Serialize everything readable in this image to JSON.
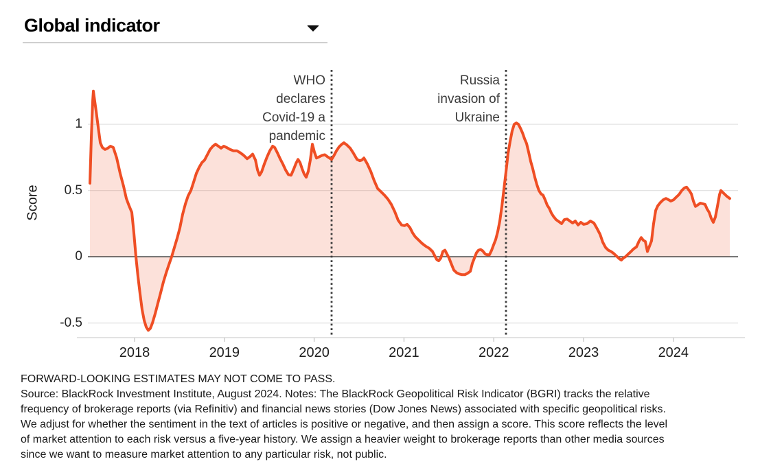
{
  "header": {
    "title": "Global indicator",
    "dropdown_icon": "caret-down"
  },
  "chart_data": {
    "type": "area",
    "title": "Global indicator",
    "xlabel": "",
    "ylabel": "Score",
    "x_ticks": [
      2018,
      2019,
      2020,
      2021,
      2022,
      2023,
      2024
    ],
    "x_tick_labels": [
      "2018",
      "2019",
      "2020",
      "2021",
      "2022",
      "2023",
      "2024"
    ],
    "y_ticks": [
      1,
      0.5,
      0,
      -0.5
    ],
    "y_tick_labels": [
      "1",
      "0.5",
      "0",
      "-0.5"
    ],
    "xlim": [
      2017.48,
      2024.72
    ],
    "ylim": [
      -0.61,
      1.42
    ],
    "grid": "horizontal",
    "legend": "none",
    "annotations": [
      {
        "text": "WHO\ndeclares\nCovid-19 a\npandemic",
        "x": 2020.194,
        "line_style": "dotted"
      },
      {
        "text": "Russia\ninvasion of\nUkraine",
        "x": 2022.136,
        "line_style": "dotted"
      }
    ],
    "colors": {
      "line": "#EF4E24",
      "fill": "#EF4E24",
      "fill_opacity": 0.17,
      "grid": "#E3E3E3",
      "zero_line": "#454545",
      "axis_bottom": "#D9D9D9",
      "tick": "#C9C9C9",
      "event_line": "#3E3E3E"
    },
    "series": [
      {
        "name": "Global indicator",
        "x": [
          2017.503,
          2017.518,
          2017.534,
          2017.541,
          2017.557,
          2017.572,
          2017.595,
          2017.618,
          2017.641,
          2017.671,
          2017.702,
          2017.732,
          2017.763,
          2017.801,
          2017.839,
          2017.878,
          2017.908,
          2017.939,
          2017.969,
          2017.992,
          2018.015,
          2018.038,
          2018.061,
          2018.084,
          2018.107,
          2018.13,
          2018.153,
          2018.176,
          2018.199,
          2018.229,
          2018.26,
          2018.291,
          2018.321,
          2018.352,
          2018.382,
          2018.413,
          2018.443,
          2018.474,
          2018.505,
          2018.535,
          2018.566,
          2018.596,
          2018.627,
          2018.658,
          2018.688,
          2018.719,
          2018.749,
          2018.78,
          2018.81,
          2018.841,
          2018.872,
          2018.902,
          2018.933,
          2018.963,
          2018.994,
          2019.024,
          2019.063,
          2019.101,
          2019.139,
          2019.177,
          2019.216,
          2019.254,
          2019.284,
          2019.315,
          2019.346,
          2019.369,
          2019.391,
          2019.414,
          2019.445,
          2019.476,
          2019.506,
          2019.537,
          2019.56,
          2019.59,
          2019.621,
          2019.651,
          2019.682,
          2019.713,
          2019.743,
          2019.774,
          2019.797,
          2019.82,
          2019.843,
          2019.865,
          2019.888,
          2019.911,
          2019.934,
          2019.957,
          2019.98,
          2020.003,
          2020.026,
          2020.057,
          2020.087,
          2020.118,
          2020.148,
          2020.171,
          2020.194,
          2020.217,
          2020.248,
          2020.278,
          2020.309,
          2020.332,
          2020.362,
          2020.401,
          2020.439,
          2020.477,
          2020.508,
          2020.531,
          2020.554,
          2020.592,
          2020.63,
          2020.668,
          2020.707,
          2020.745,
          2020.783,
          2020.821,
          2020.859,
          2020.898,
          2020.936,
          2020.974,
          2021.005,
          2021.035,
          2021.066,
          2021.096,
          2021.127,
          2021.165,
          2021.203,
          2021.242,
          2021.28,
          2021.318,
          2021.341,
          2021.364,
          2021.387,
          2021.41,
          2021.433,
          2021.456,
          2021.479,
          2021.502,
          2021.525,
          2021.555,
          2021.586,
          2021.616,
          2021.647,
          2021.677,
          2021.708,
          2021.739,
          2021.761,
          2021.784,
          2021.807,
          2021.83,
          2021.853,
          2021.876,
          2021.906,
          2021.929,
          2021.952,
          2021.976,
          2021.998,
          2022.021,
          2022.044,
          2022.067,
          2022.09,
          2022.113,
          2022.136,
          2022.159,
          2022.182,
          2022.205,
          2022.228,
          2022.251,
          2022.274,
          2022.297,
          2022.32,
          2022.343,
          2022.365,
          2022.388,
          2022.411,
          2022.434,
          2022.457,
          2022.48,
          2022.503,
          2022.526,
          2022.549,
          2022.572,
          2022.595,
          2022.618,
          2022.641,
          2022.664,
          2022.694,
          2022.725,
          2022.755,
          2022.786,
          2022.817,
          2022.847,
          2022.878,
          2022.908,
          2022.939,
          2022.969,
          2023.0,
          2023.038,
          2023.076,
          2023.115,
          2023.153,
          2023.183,
          2023.214,
          2023.245,
          2023.275,
          2023.306,
          2023.336,
          2023.367,
          2023.398,
          2023.421,
          2023.443,
          2023.466,
          2023.497,
          2023.528,
          2023.558,
          2023.589,
          2023.619,
          2023.642,
          2023.665,
          2023.688,
          2023.711,
          2023.734,
          2023.757,
          2023.78,
          2023.803,
          2023.826,
          2023.856,
          2023.887,
          2023.917,
          2023.948,
          2023.971,
          2024.002,
          2024.032,
          2024.063,
          2024.093,
          2024.124,
          2024.147,
          2024.177,
          2024.2,
          2024.223,
          2024.246,
          2024.269,
          2024.3,
          2024.33,
          2024.353,
          2024.376,
          2024.399,
          2024.422,
          2024.445,
          2024.468,
          2024.491,
          2024.514,
          2024.529,
          2024.552,
          2024.575,
          2024.598,
          2024.628
        ],
        "y": [
          0.555,
          0.9,
          1.18,
          1.25,
          1.17,
          1.1,
          0.98,
          0.86,
          0.825,
          0.81,
          0.82,
          0.835,
          0.825,
          0.745,
          0.63,
          0.53,
          0.44,
          0.385,
          0.335,
          0.18,
          0.0,
          -0.15,
          -0.28,
          -0.4,
          -0.48,
          -0.53,
          -0.555,
          -0.54,
          -0.5,
          -0.43,
          -0.35,
          -0.27,
          -0.19,
          -0.12,
          -0.06,
          0.0,
          0.07,
          0.14,
          0.22,
          0.32,
          0.4,
          0.46,
          0.5,
          0.565,
          0.63,
          0.675,
          0.71,
          0.73,
          0.77,
          0.81,
          0.835,
          0.85,
          0.835,
          0.82,
          0.835,
          0.825,
          0.81,
          0.8,
          0.8,
          0.785,
          0.765,
          0.74,
          0.755,
          0.775,
          0.73,
          0.655,
          0.615,
          0.64,
          0.7,
          0.755,
          0.8,
          0.835,
          0.825,
          0.785,
          0.74,
          0.7,
          0.655,
          0.62,
          0.615,
          0.665,
          0.705,
          0.735,
          0.71,
          0.665,
          0.625,
          0.6,
          0.645,
          0.73,
          0.85,
          0.79,
          0.745,
          0.755,
          0.765,
          0.77,
          0.755,
          0.745,
          0.735,
          0.76,
          0.8,
          0.83,
          0.85,
          0.86,
          0.845,
          0.82,
          0.78,
          0.735,
          0.725,
          0.73,
          0.745,
          0.7,
          0.645,
          0.575,
          0.515,
          0.49,
          0.465,
          0.435,
          0.395,
          0.34,
          0.275,
          0.24,
          0.235,
          0.245,
          0.22,
          0.18,
          0.15,
          0.125,
          0.1,
          0.08,
          0.065,
          0.04,
          0.01,
          -0.02,
          -0.03,
          -0.01,
          0.04,
          0.05,
          0.02,
          -0.01,
          -0.05,
          -0.1,
          -0.12,
          -0.13,
          -0.135,
          -0.135,
          -0.125,
          -0.11,
          -0.05,
          -0.01,
          0.03,
          0.05,
          0.055,
          0.045,
          0.02,
          0.015,
          0.015,
          0.05,
          0.09,
          0.13,
          0.19,
          0.27,
          0.38,
          0.51,
          0.64,
          0.78,
          0.87,
          0.95,
          1.0,
          1.01,
          1.0,
          0.97,
          0.935,
          0.89,
          0.855,
          0.79,
          0.72,
          0.665,
          0.6,
          0.545,
          0.5,
          0.475,
          0.465,
          0.43,
          0.39,
          0.365,
          0.33,
          0.305,
          0.28,
          0.265,
          0.25,
          0.28,
          0.285,
          0.27,
          0.255,
          0.27,
          0.24,
          0.26,
          0.245,
          0.25,
          0.27,
          0.255,
          0.21,
          0.17,
          0.11,
          0.07,
          0.05,
          0.04,
          0.025,
          0.005,
          -0.015,
          -0.025,
          -0.01,
          0.0,
          0.02,
          0.04,
          0.06,
          0.075,
          0.12,
          0.145,
          0.125,
          0.115,
          0.04,
          0.08,
          0.12,
          0.25,
          0.35,
          0.385,
          0.41,
          0.43,
          0.44,
          0.43,
          0.42,
          0.43,
          0.45,
          0.47,
          0.5,
          0.52,
          0.525,
          0.5,
          0.475,
          0.42,
          0.38,
          0.39,
          0.405,
          0.4,
          0.395,
          0.36,
          0.335,
          0.29,
          0.26,
          0.3,
          0.38,
          0.47,
          0.5,
          0.485,
          0.47,
          0.455,
          0.44
        ]
      }
    ]
  },
  "footer": {
    "disclaimer": "FORWARD-LOOKING ESTIMATES MAY NOT COME TO PASS.",
    "source_lines": [
      "Source: BlackRock Investment Institute, August 2024. Notes: The BlackRock Geopolitical Risk Indicator (BGRI) tracks the relative",
      "frequency of brokerage reports (via Refinitiv) and financial news stories (Dow Jones News) associated with specific geopolitical risks.",
      "We adjust for whether the sentiment in the text of articles is positive or negative, and then assign a score. This score reflects the level",
      "of market attention to each risk versus a five-year history. We assign a heavier weight to brokerage reports than other media sources",
      "since we want to measure market attention to any particular risk, not public."
    ]
  }
}
